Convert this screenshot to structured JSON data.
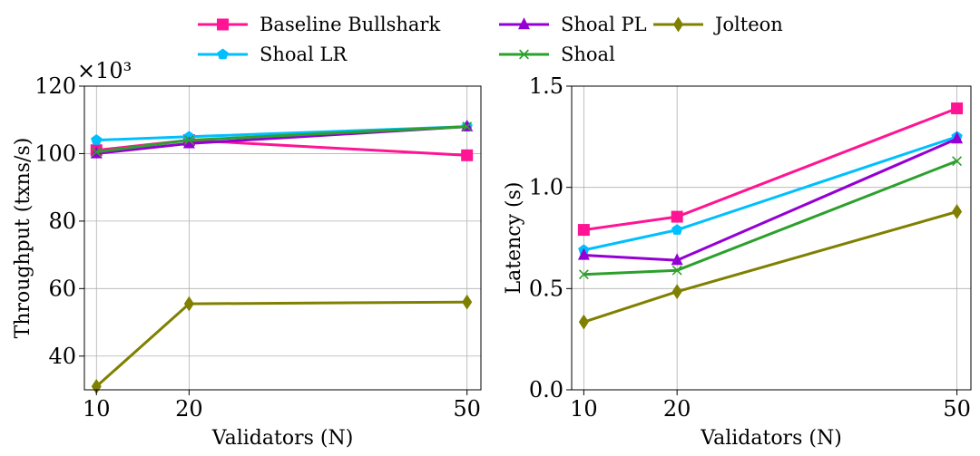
{
  "legend": {
    "placement": "top-center",
    "entries": [
      {
        "label": "Baseline Bullshark",
        "color": "#ff1493",
        "marker": "square"
      },
      {
        "label": "Shoal PL",
        "color": "#9400d3",
        "marker": "triangle-up"
      },
      {
        "label": "Jolteon",
        "color": "#808000",
        "marker": "diamond"
      },
      {
        "label": "Shoal LR",
        "color": "#00bfff",
        "marker": "pentagon"
      },
      {
        "label": "Shoal",
        "color": "#2ca02c",
        "marker": "x"
      }
    ]
  },
  "chart_data": [
    {
      "type": "line",
      "xlabel": "Validators (N)",
      "ylabel": "Throughput (txns/s)",
      "y_multiplier": "×10³",
      "x": [
        10,
        20,
        50
      ],
      "xticks": [
        "10",
        "20",
        "50"
      ],
      "xlim": [
        8.7,
        51.5
      ],
      "ylim": [
        30,
        120
      ],
      "yticks": [
        "40",
        "60",
        "80",
        "100",
        "120"
      ],
      "grid": true,
      "series": [
        {
          "name": "Baseline Bullshark",
          "color": "#ff1493",
          "marker": "square",
          "values": [
            101,
            104,
            99.5
          ]
        },
        {
          "name": "Shoal LR",
          "color": "#00bfff",
          "marker": "pentagon",
          "values": [
            104,
            105,
            108
          ]
        },
        {
          "name": "Shoal PL",
          "color": "#9400d3",
          "marker": "triangle-up",
          "values": [
            100,
            103,
            108
          ]
        },
        {
          "name": "Shoal",
          "color": "#2ca02c",
          "marker": "x",
          "values": [
            100.5,
            104,
            108
          ]
        },
        {
          "name": "Jolteon",
          "color": "#808000",
          "marker": "diamond",
          "values": [
            31,
            55.5,
            56
          ]
        }
      ]
    },
    {
      "type": "line",
      "xlabel": "Validators (N)",
      "ylabel": "Latency (s)",
      "x": [
        10,
        20,
        50
      ],
      "xticks": [
        "10",
        "20",
        "50"
      ],
      "xlim": [
        8.7,
        51.5
      ],
      "ylim": [
        0,
        1.5
      ],
      "yticks": [
        "0.0",
        "0.5",
        "1.0",
        "1.5"
      ],
      "grid": true,
      "series": [
        {
          "name": "Baseline Bullshark",
          "color": "#ff1493",
          "marker": "square",
          "values": [
            0.79,
            0.855,
            1.39
          ]
        },
        {
          "name": "Shoal LR",
          "color": "#00bfff",
          "marker": "pentagon",
          "values": [
            0.69,
            0.79,
            1.25
          ]
        },
        {
          "name": "Shoal PL",
          "color": "#9400d3",
          "marker": "triangle-up",
          "values": [
            0.665,
            0.64,
            1.24
          ]
        },
        {
          "name": "Shoal",
          "color": "#2ca02c",
          "marker": "x",
          "values": [
            0.57,
            0.59,
            1.13
          ]
        },
        {
          "name": "Jolteon",
          "color": "#808000",
          "marker": "diamond",
          "values": [
            0.335,
            0.485,
            0.88
          ]
        }
      ]
    }
  ]
}
